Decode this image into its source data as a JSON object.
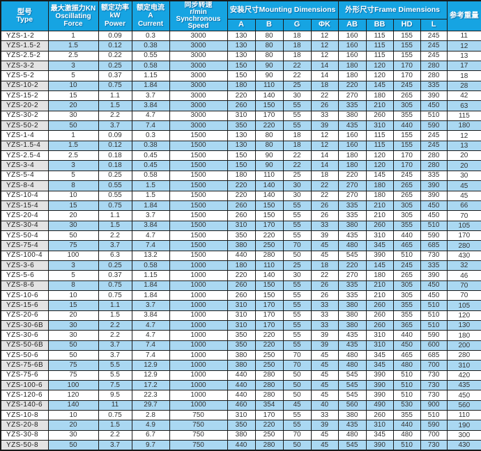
{
  "colors": {
    "header_bg": "#16a4e2",
    "header_text": "#ffffff",
    "alt_row_bg": "#aad8f2",
    "alt_type_bg": "#e3e3e3",
    "border": "#1a1a1a",
    "text": "#333333"
  },
  "header": {
    "type": "型号\nType",
    "force": "最大激振力KN\nOscillating\nForce",
    "power": "额定功率\nkW\nPower",
    "current": "额定电流\nA\nCurrent",
    "speed": "同步转速\nr/min\nSynchronous\nSpeed",
    "mounting_group": "安装尺寸Mounting Dimensions",
    "frame_group": "外形尺寸Frame Dimensions",
    "weight": "参考重量",
    "mounting_cols": [
      "A",
      "B",
      "G",
      "ΦK"
    ],
    "frame_cols": [
      "AB",
      "BB",
      "HD",
      "L"
    ]
  },
  "rows": [
    [
      "YZS-1-2",
      "1",
      "0.09",
      "0.3",
      "3000",
      "130",
      "80",
      "18",
      "12",
      "160",
      "115",
      "155",
      "245",
      "11"
    ],
    [
      "YZS-1.5-2",
      "1.5",
      "0.12",
      "0.38",
      "3000",
      "130",
      "80",
      "18",
      "12",
      "160",
      "115",
      "155",
      "245",
      "12"
    ],
    [
      "YZS-2.5-2",
      "2.5",
      "0.22",
      "0.55",
      "3000",
      "130",
      "80",
      "18",
      "12",
      "160",
      "115",
      "155",
      "245",
      "13"
    ],
    [
      "YZS-3-2",
      "3",
      "0.25",
      "0.58",
      "3000",
      "150",
      "90",
      "22",
      "14",
      "180",
      "120",
      "170",
      "280",
      "17"
    ],
    [
      "YZS-5-2",
      "5",
      "0.37",
      "1.15",
      "3000",
      "150",
      "90",
      "22",
      "14",
      "180",
      "120",
      "170",
      "280",
      "18"
    ],
    [
      "YZS-10-2",
      "10",
      "0.75",
      "1.84",
      "3000",
      "180",
      "110",
      "25",
      "18",
      "220",
      "145",
      "245",
      "335",
      "28"
    ],
    [
      "YZS-15-2",
      "15",
      "1.1",
      "3.7",
      "3000",
      "220",
      "140",
      "30",
      "22",
      "270",
      "180",
      "265",
      "390",
      "42"
    ],
    [
      "YZS-20-2",
      "20",
      "1.5",
      "3.84",
      "3000",
      "260",
      "150",
      "55",
      "26",
      "335",
      "210",
      "305",
      "450",
      "63"
    ],
    [
      "YZS-30-2",
      "30",
      "2.2",
      "4.7",
      "3000",
      "310",
      "170",
      "55",
      "33",
      "380",
      "260",
      "355",
      "510",
      "115"
    ],
    [
      "YZS-50-2",
      "50",
      "3.7",
      "7.4",
      "3000",
      "350",
      "220",
      "55",
      "39",
      "435",
      "310",
      "440",
      "590",
      "180"
    ],
    [
      "YZS-1-4",
      "1",
      "0.09",
      "0.3",
      "1500",
      "130",
      "80",
      "18",
      "12",
      "160",
      "115",
      "155",
      "245",
      "12"
    ],
    [
      "YZS-1.5-4",
      "1.5",
      "0.12",
      "0.38",
      "1500",
      "130",
      "80",
      "18",
      "12",
      "160",
      "115",
      "155",
      "245",
      "13"
    ],
    [
      "YZS-2.5-4",
      "2.5",
      "0.18",
      "0.45",
      "1500",
      "150",
      "90",
      "22",
      "14",
      "180",
      "120",
      "170",
      "280",
      "20"
    ],
    [
      "YZS-3-4",
      "3",
      "0.18",
      "0.45",
      "1500",
      "150",
      "90",
      "22",
      "14",
      "180",
      "120",
      "170",
      "280",
      "20"
    ],
    [
      "YZS-5-4",
      "5",
      "0.25",
      "0.58",
      "1500",
      "180",
      "110",
      "25",
      "18",
      "220",
      "145",
      "245",
      "335",
      "30"
    ],
    [
      "YZS-8-4",
      "8",
      "0.55",
      "1.5",
      "1500",
      "220",
      "140",
      "30",
      "22",
      "270",
      "180",
      "265",
      "390",
      "45"
    ],
    [
      "YZS-10-4",
      "10",
      "0.55",
      "1.5",
      "1500",
      "220",
      "140",
      "30",
      "22",
      "270",
      "180",
      "265",
      "390",
      "45"
    ],
    [
      "YZS-15-4",
      "15",
      "0.75",
      "1.84",
      "1500",
      "260",
      "150",
      "55",
      "26",
      "335",
      "210",
      "305",
      "450",
      "66"
    ],
    [
      "YZS-20-4",
      "20",
      "1.1",
      "3.7",
      "1500",
      "260",
      "150",
      "55",
      "26",
      "335",
      "210",
      "305",
      "450",
      "70"
    ],
    [
      "YZS-30-4",
      "30",
      "1.5",
      "3.84",
      "1500",
      "310",
      "170",
      "55",
      "33",
      "380",
      "260",
      "355",
      "510",
      "105"
    ],
    [
      "YZS-50-4",
      "50",
      "2.2",
      "4.7",
      "1500",
      "350",
      "220",
      "55",
      "39",
      "435",
      "310",
      "440",
      "590",
      "170"
    ],
    [
      "YZS-75-4",
      "75",
      "3.7",
      "7.4",
      "1500",
      "380",
      "250",
      "70",
      "45",
      "480",
      "345",
      "465",
      "685",
      "280"
    ],
    [
      "YZS-100-4",
      "100",
      "6.3",
      "13.2",
      "1500",
      "440",
      "280",
      "50",
      "45",
      "545",
      "390",
      "510",
      "730",
      "430"
    ],
    [
      "YZS-3-6",
      "3",
      "0.25",
      "0.58",
      "1000",
      "180",
      "110",
      "25",
      "18",
      "220",
      "145",
      "245",
      "335",
      "32"
    ],
    [
      "YZS-5-6",
      "5",
      "0.37",
      "1.15",
      "1000",
      "220",
      "140",
      "30",
      "22",
      "270",
      "180",
      "265",
      "390",
      "46"
    ],
    [
      "YZS-8-6",
      "8",
      "0.75",
      "1.84",
      "1000",
      "260",
      "150",
      "55",
      "26",
      "335",
      "210",
      "305",
      "450",
      "70"
    ],
    [
      "YZS-10-6",
      "10",
      "0.75",
      "1.84",
      "1000",
      "260",
      "150",
      "55",
      "26",
      "335",
      "210",
      "305",
      "450",
      "70"
    ],
    [
      "YZS-15-6",
      "15",
      "1.1",
      "3.7",
      "1000",
      "310",
      "170",
      "55",
      "33",
      "380",
      "260",
      "355",
      "510",
      "105"
    ],
    [
      "YZS-20-6",
      "20",
      "1.5",
      "3.84",
      "1000",
      "310",
      "170",
      "55",
      "33",
      "380",
      "260",
      "355",
      "510",
      "120"
    ],
    [
      "YZS-30-6B",
      "30",
      "2.2",
      "4.7",
      "1000",
      "310",
      "170",
      "55",
      "33",
      "380",
      "260",
      "365",
      "510",
      "130"
    ],
    [
      "YZS-30-6",
      "30",
      "2.2",
      "4.7",
      "1000",
      "350",
      "220",
      "55",
      "39",
      "435",
      "310",
      "440",
      "590",
      "180"
    ],
    [
      "YZS-50-6B",
      "50",
      "3.7",
      "7.4",
      "1000",
      "350",
      "220",
      "55",
      "39",
      "435",
      "310",
      "450",
      "600",
      "200"
    ],
    [
      "YZS-50-6",
      "50",
      "3.7",
      "7.4",
      "1000",
      "380",
      "250",
      "70",
      "45",
      "480",
      "345",
      "465",
      "685",
      "280"
    ],
    [
      "YZS-75-6B",
      "75",
      "5.5",
      "12.9",
      "1000",
      "380",
      "250",
      "70",
      "45",
      "480",
      "345",
      "480",
      "700",
      "310"
    ],
    [
      "YZS-75-6",
      "75",
      "5.5",
      "12.9",
      "1000",
      "440",
      "280",
      "50",
      "45",
      "545",
      "390",
      "510",
      "730",
      "420"
    ],
    [
      "YZS-100-6",
      "100",
      "7.5",
      "17.2",
      "1000",
      "440",
      "280",
      "50",
      "45",
      "545",
      "390",
      "510",
      "730",
      "435"
    ],
    [
      "YZS-120-6",
      "120",
      "9.5",
      "22.3",
      "1000",
      "440",
      "280",
      "50",
      "45",
      "545",
      "390",
      "510",
      "730",
      "450"
    ],
    [
      "YZS-140-6",
      "140",
      "11",
      "29.7",
      "1000",
      "460",
      "354",
      "45",
      "40",
      "560",
      "490",
      "530",
      "900",
      "560"
    ],
    [
      "YZS-10-8",
      "10",
      "0.75",
      "2.8",
      "750",
      "310",
      "170",
      "55",
      "33",
      "380",
      "260",
      "355",
      "510",
      "110"
    ],
    [
      "YZS-20-8",
      "20",
      "1.5",
      "4.9",
      "750",
      "350",
      "220",
      "55",
      "39",
      "435",
      "310",
      "440",
      "590",
      "190"
    ],
    [
      "YZS-30-8",
      "30",
      "2.2",
      "6.7",
      "750",
      "380",
      "250",
      "70",
      "45",
      "480",
      "345",
      "480",
      "700",
      "300"
    ],
    [
      "YZS-50-8",
      "50",
      "3.7",
      "9.7",
      "750",
      "440",
      "280",
      "50",
      "45",
      "545",
      "390",
      "510",
      "730",
      "430"
    ]
  ]
}
